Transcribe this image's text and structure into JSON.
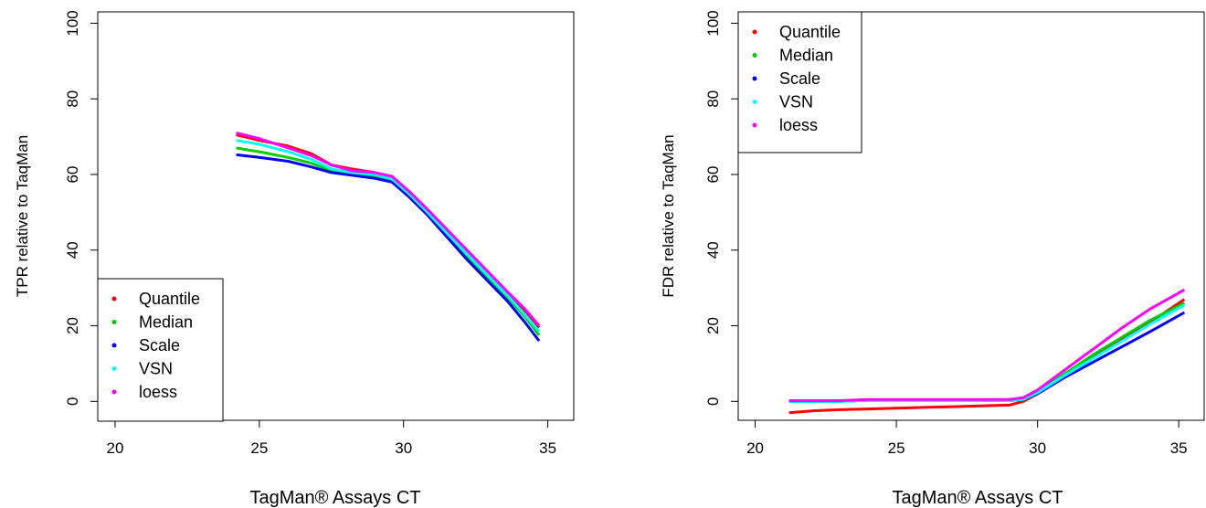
{
  "chart_data": [
    {
      "type": "line",
      "title": "",
      "xlabel": "TagMan® Assays CT",
      "ylabel": "TPR relative to TaqMan",
      "xlim": [
        19.4,
        35.9
      ],
      "ylim": [
        -5,
        103
      ],
      "xticks": [
        20,
        25,
        30,
        35
      ],
      "yticks": [
        0,
        20,
        40,
        60,
        80,
        100
      ],
      "grid": false,
      "legend_position": "bottom-left",
      "series": [
        {
          "name": "Quantile",
          "color": "#ff0000",
          "x": [
            24.2,
            25.0,
            26.0,
            26.8,
            27.5,
            28.2,
            29.0,
            29.6,
            30.2,
            30.8,
            31.5,
            32.2,
            32.9,
            33.6,
            34.2,
            34.7
          ],
          "y": [
            70.5,
            69.0,
            67.5,
            65.5,
            62.5,
            61.5,
            60.5,
            59.0,
            55.0,
            50.5,
            45.0,
            39.5,
            34.0,
            28.5,
            24.0,
            19.5
          ]
        },
        {
          "name": "Median",
          "color": "#00cd00",
          "x": [
            24.2,
            25.0,
            26.0,
            26.8,
            27.5,
            28.2,
            29.0,
            29.6,
            30.2,
            30.8,
            31.5,
            32.2,
            32.9,
            33.6,
            34.2,
            34.7
          ],
          "y": [
            67.0,
            66.0,
            64.5,
            63.0,
            61.0,
            60.0,
            59.5,
            58.5,
            54.5,
            50.0,
            44.0,
            38.5,
            33.0,
            27.5,
            22.5,
            17.5
          ]
        },
        {
          "name": "Scale",
          "color": "#0000ff",
          "x": [
            24.2,
            25.0,
            26.0,
            26.8,
            27.5,
            28.2,
            29.0,
            29.6,
            30.2,
            30.8,
            31.5,
            32.2,
            32.9,
            33.6,
            34.2,
            34.7
          ],
          "y": [
            65.2,
            64.5,
            63.5,
            62.0,
            60.5,
            59.8,
            59.0,
            58.0,
            54.0,
            49.5,
            43.5,
            37.5,
            32.0,
            26.5,
            21.0,
            16.0
          ]
        },
        {
          "name": "VSN",
          "color": "#00ffff",
          "x": [
            24.2,
            25.0,
            26.0,
            26.8,
            27.5,
            28.2,
            29.0,
            29.6,
            30.2,
            30.8,
            31.5,
            32.2,
            32.9,
            33.6,
            34.2,
            34.7
          ],
          "y": [
            69.0,
            68.0,
            66.0,
            64.0,
            61.5,
            60.5,
            60.0,
            58.8,
            54.8,
            50.2,
            44.5,
            39.0,
            33.5,
            28.0,
            23.0,
            18.5
          ]
        },
        {
          "name": "loess",
          "color": "#ff00ff",
          "x": [
            24.2,
            25.0,
            26.0,
            26.8,
            27.5,
            28.2,
            29.0,
            29.6,
            30.2,
            30.8,
            31.5,
            32.2,
            32.9,
            33.6,
            34.2,
            34.7
          ],
          "y": [
            71.0,
            69.5,
            67.0,
            65.0,
            62.5,
            61.0,
            60.5,
            59.5,
            55.5,
            51.0,
            45.5,
            40.0,
            34.5,
            29.0,
            24.5,
            20.0
          ]
        }
      ]
    },
    {
      "type": "line",
      "title": "",
      "xlabel": "TagMan® Assays CT",
      "ylabel": "FDR relative to TaqMan",
      "xlim": [
        19.4,
        35.9
      ],
      "ylim": [
        -5,
        103
      ],
      "xticks": [
        20,
        25,
        30,
        35
      ],
      "yticks": [
        0,
        20,
        40,
        60,
        80,
        100
      ],
      "grid": false,
      "legend_position": "top-left",
      "series": [
        {
          "name": "Quantile",
          "color": "#ff0000",
          "x": [
            21.2,
            22.0,
            23.0,
            24.0,
            25.0,
            26.0,
            27.0,
            28.0,
            29.0,
            29.5,
            30.0,
            31.0,
            32.0,
            33.0,
            34.0,
            35.2
          ],
          "y": [
            -3.0,
            -2.5,
            -2.2,
            -2.0,
            -1.8,
            -1.6,
            -1.4,
            -1.2,
            -1.0,
            0.0,
            2.0,
            7.0,
            12.0,
            16.5,
            21.0,
            27.0
          ]
        },
        {
          "name": "Median",
          "color": "#00cd00",
          "x": [
            21.2,
            22.0,
            23.0,
            24.0,
            25.0,
            26.0,
            27.0,
            28.0,
            29.0,
            29.5,
            30.0,
            31.0,
            32.0,
            33.0,
            34.0,
            35.2
          ],
          "y": [
            0.0,
            0.0,
            0.0,
            0.3,
            0.3,
            0.3,
            0.3,
            0.3,
            0.2,
            0.5,
            2.5,
            7.5,
            12.5,
            17.0,
            21.5,
            26.0
          ]
        },
        {
          "name": "Scale",
          "color": "#0000ff",
          "x": [
            21.2,
            22.0,
            23.0,
            24.0,
            25.0,
            26.0,
            27.0,
            28.0,
            29.0,
            29.5,
            30.0,
            31.0,
            32.0,
            33.0,
            34.0,
            35.2
          ],
          "y": [
            0.0,
            0.0,
            0.0,
            0.3,
            0.3,
            0.3,
            0.3,
            0.3,
            0.2,
            0.5,
            2.0,
            6.5,
            10.5,
            14.5,
            18.5,
            23.5
          ]
        },
        {
          "name": "VSN",
          "color": "#00ffff",
          "x": [
            21.2,
            22.0,
            23.0,
            24.0,
            25.0,
            26.0,
            27.0,
            28.0,
            29.0,
            29.5,
            30.0,
            31.0,
            32.0,
            33.0,
            34.0,
            35.2
          ],
          "y": [
            0.0,
            0.0,
            0.0,
            0.3,
            0.3,
            0.3,
            0.3,
            0.3,
            0.2,
            0.5,
            2.3,
            7.0,
            11.5,
            16.0,
            20.5,
            25.5
          ]
        },
        {
          "name": "loess",
          "color": "#ff00ff",
          "x": [
            21.2,
            22.0,
            23.0,
            24.0,
            25.0,
            26.0,
            27.0,
            28.0,
            29.0,
            29.5,
            30.0,
            31.0,
            32.0,
            33.0,
            34.0,
            35.2
          ],
          "y": [
            0.2,
            0.2,
            0.2,
            0.5,
            0.5,
            0.5,
            0.5,
            0.5,
            0.5,
            1.0,
            3.0,
            8.5,
            14.0,
            19.5,
            24.5,
            29.5
          ]
        }
      ]
    }
  ]
}
